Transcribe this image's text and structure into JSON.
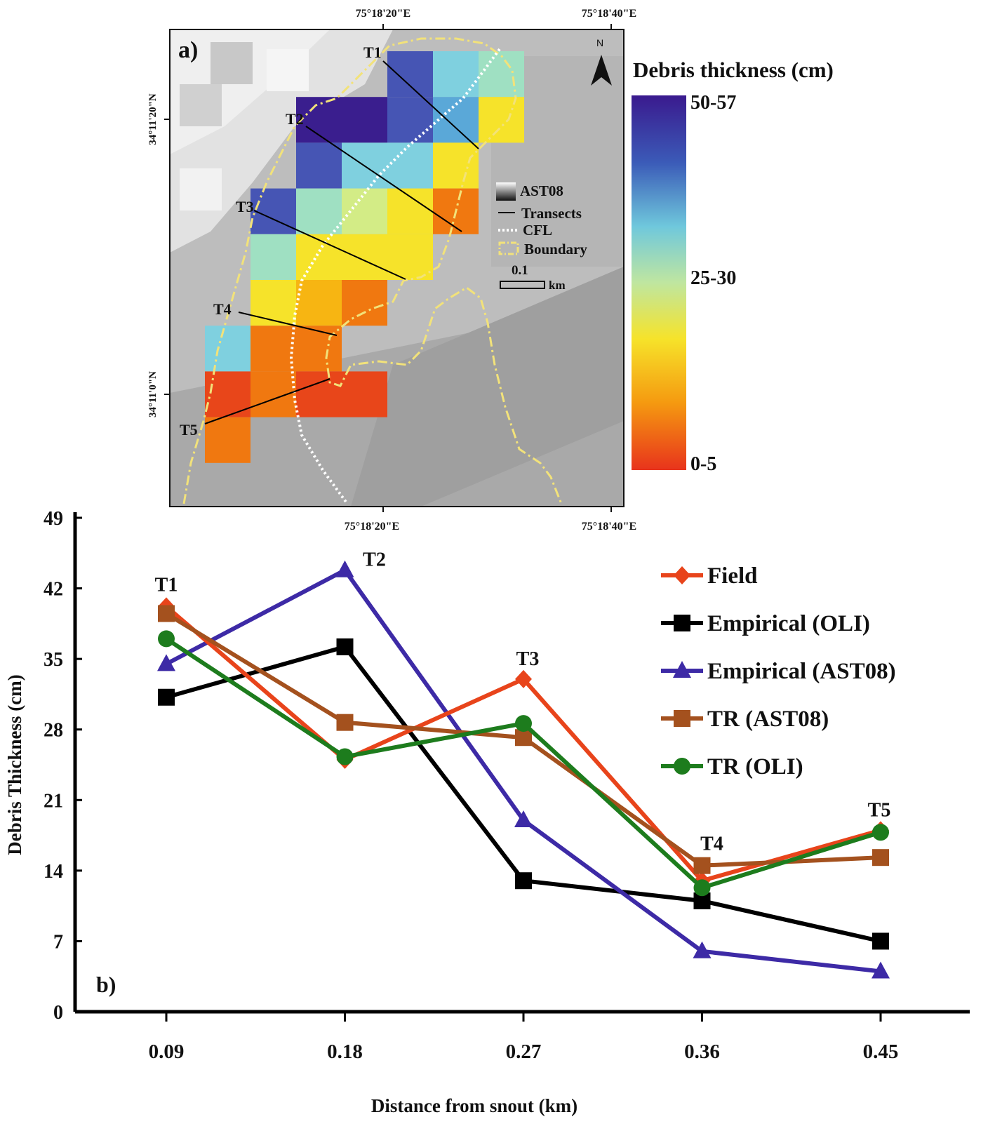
{
  "panel_a": {
    "label": "a)",
    "north_label": "N",
    "coords": {
      "top_left": "75°18'20\"E",
      "top_right": "75°18'40\"E",
      "bottom_left": "75°18'20\"E",
      "bottom_right": "75°18'40\"E",
      "lat_top": "34°11'20\"N",
      "lat_bottom": "34°11'0\"N"
    },
    "transects": [
      "T1",
      "T2",
      "T3",
      "T4",
      "T5"
    ],
    "legend": {
      "ast08": "AST08",
      "transects": "Transects",
      "cfl": "CFL",
      "boundary": "Boundary",
      "scale_value": "0.1",
      "scale_unit": "km"
    },
    "colorbar": {
      "title": "Debris thickness (cm)",
      "top": "50-57",
      "mid": "25-30",
      "bottom": "0-5"
    }
  },
  "chart_data": {
    "type": "line",
    "panel_label": "b)",
    "xlabel": "Distance from snout (km)",
    "ylabel": "Debris Thickness (cm)",
    "categories": [
      "0.09",
      "0.18",
      "0.27",
      "0.36",
      "0.45"
    ],
    "ylim": [
      0,
      49
    ],
    "yticks": [
      "0",
      "7",
      "14",
      "21",
      "28",
      "35",
      "42",
      "49"
    ],
    "point_labels": [
      "T1",
      "T2",
      "T3",
      "T4",
      "T5"
    ],
    "legend_position": "top-right",
    "series": [
      {
        "name": "Field",
        "color": "#e8441b",
        "marker": "diamond",
        "values": [
          40.2,
          25.0,
          33.0,
          13.0,
          18.0
        ]
      },
      {
        "name": "Empirical (OLI)",
        "color": "#000000",
        "marker": "square",
        "values": [
          31.2,
          36.2,
          13.0,
          11.0,
          7.0
        ]
      },
      {
        "name": "Empirical (AST08)",
        "color": "#3d2aa6",
        "marker": "triangle",
        "values": [
          34.5,
          43.8,
          19.0,
          6.0,
          4.0
        ]
      },
      {
        "name": "TR (AST08)",
        "color": "#a4511e",
        "marker": "square",
        "values": [
          39.5,
          28.7,
          27.2,
          14.5,
          15.3
        ]
      },
      {
        "name": "TR (OLI)",
        "color": "#1d7c1d",
        "marker": "circle",
        "values": [
          37.0,
          25.3,
          28.6,
          12.3,
          17.8
        ]
      }
    ]
  }
}
